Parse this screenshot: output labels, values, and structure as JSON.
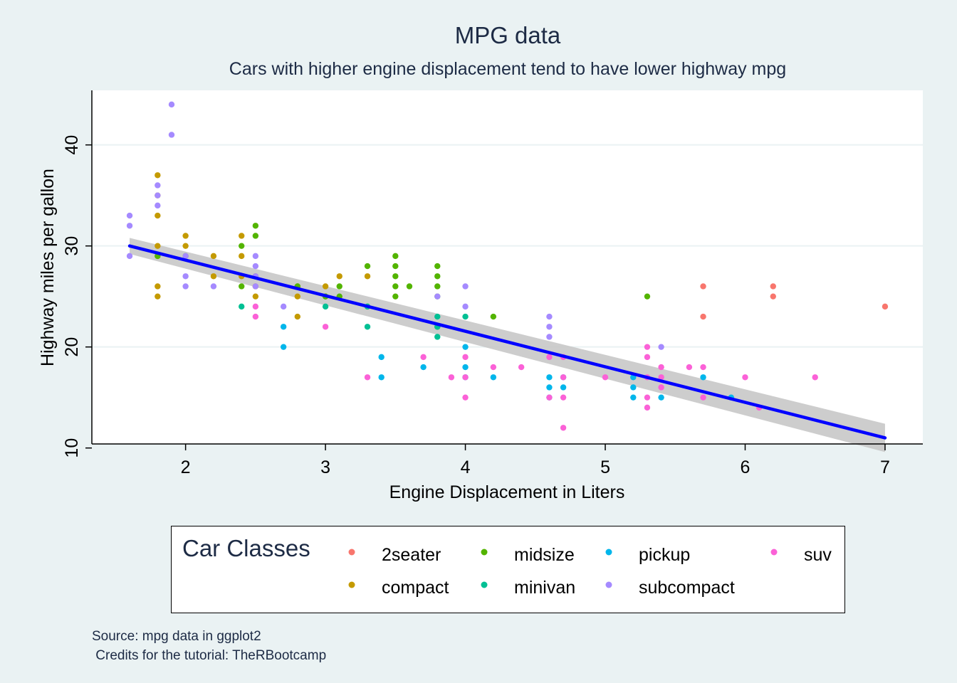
{
  "chart_data": {
    "type": "scatter",
    "title": "MPG data",
    "subtitle": "Cars with higher engine displacement tend to have lower highway mpg",
    "xlabel": "Engine Displacement in Liters",
    "ylabel": "Highway miles per gallon",
    "xlim": [
      1.33,
      7.27
    ],
    "ylim": [
      10.4,
      45.4
    ],
    "xticks": [
      2,
      3,
      4,
      5,
      6,
      7
    ],
    "yticks": [
      10,
      20,
      30,
      40
    ],
    "grid": "horizontal",
    "caption": "Source: mpg data in ggplot2\n Credits for the tutorial: TheRBootcamp",
    "legend": {
      "title": "Car Classes",
      "placement": "bottom",
      "entries": [
        "2seater",
        "midsize",
        "pickup",
        "suv",
        "compact",
        "minivan",
        "subcompact"
      ]
    },
    "colors": {
      "2seater": "#F8766D",
      "compact": "#C49A00",
      "midsize": "#53B400",
      "minivan": "#00C094",
      "pickup": "#00B6EB",
      "subcompact": "#A58AFF",
      "suv": "#FB61D7",
      "trend_line": "#0000ff",
      "confidence_band": "#c8c8c8",
      "background": "#eaf2f3",
      "text": "#1d2b45"
    },
    "trend": {
      "method": "linear fit",
      "x": [
        1.6,
        7.0
      ],
      "y": [
        30.0,
        11.0
      ],
      "ci_lower": [
        29.2,
        9.6
      ],
      "ci_upper": [
        30.8,
        12.4
      ]
    },
    "series": [
      {
        "name": "2seater",
        "x": [
          5.7,
          5.7,
          6.2,
          6.2,
          7.0
        ],
        "y": [
          26,
          23,
          26,
          25,
          24
        ]
      },
      {
        "name": "compact",
        "x": [
          1.8,
          1.8,
          1.8,
          1.8,
          1.8,
          1.8,
          1.8,
          2.0,
          2.0,
          2.2,
          2.2,
          2.4,
          2.4,
          2.4,
          2.5,
          2.5,
          2.5,
          2.8,
          2.8,
          2.8,
          3.0,
          3.0,
          3.1,
          3.3,
          3.3
        ],
        "y": [
          37,
          35,
          33,
          30,
          29,
          26,
          25,
          31,
          30,
          29,
          27,
          31,
          29,
          27,
          27,
          26,
          25,
          26,
          25,
          23,
          26,
          25,
          27,
          27,
          24
        ]
      },
      {
        "name": "midsize",
        "x": [
          1.8,
          2.0,
          2.4,
          2.4,
          2.5,
          2.5,
          2.8,
          3.0,
          3.1,
          3.1,
          3.3,
          3.5,
          3.5,
          3.5,
          3.5,
          3.5,
          3.6,
          3.8,
          3.8,
          3.8,
          3.8,
          3.8,
          4.2,
          5.3
        ],
        "y": [
          29,
          29,
          30,
          26,
          32,
          31,
          26,
          25,
          26,
          25,
          28,
          29,
          28,
          27,
          26,
          25,
          26,
          28,
          27,
          26,
          25,
          22,
          23,
          25
        ]
      },
      {
        "name": "minivan",
        "x": [
          2.4,
          3.0,
          3.3,
          3.3,
          3.8,
          3.8,
          3.8,
          4.0
        ],
        "y": [
          24,
          24,
          24,
          22,
          23,
          22,
          21,
          23
        ]
      },
      {
        "name": "pickup",
        "x": [
          2.7,
          2.7,
          3.4,
          3.4,
          3.7,
          4.0,
          4.0,
          4.0,
          4.2,
          4.6,
          4.6,
          4.6,
          4.7,
          4.7,
          5.2,
          5.2,
          5.2,
          5.4,
          5.7,
          5.9
        ],
        "y": [
          22,
          20,
          19,
          17,
          18,
          20,
          18,
          17,
          17,
          17,
          16,
          15,
          17,
          16,
          17,
          16,
          15,
          15,
          17,
          15
        ]
      },
      {
        "name": "subcompact",
        "x": [
          1.6,
          1.6,
          1.6,
          1.8,
          1.8,
          1.8,
          1.9,
          1.9,
          2.0,
          2.0,
          2.0,
          2.2,
          2.5,
          2.5,
          2.5,
          2.5,
          2.7,
          3.8,
          4.0,
          4.0,
          4.6,
          4.6,
          4.6,
          5.4
        ],
        "y": [
          33,
          32,
          29,
          36,
          35,
          34,
          44,
          41,
          29,
          27,
          26,
          26,
          29,
          28,
          27,
          26,
          24,
          25,
          26,
          24,
          23,
          22,
          21,
          20
        ]
      },
      {
        "name": "suv",
        "x": [
          2.5,
          2.5,
          3.0,
          3.3,
          3.7,
          3.9,
          4.0,
          4.0,
          4.0,
          4.2,
          4.4,
          4.6,
          4.6,
          4.7,
          4.7,
          4.7,
          4.7,
          5.0,
          5.3,
          5.3,
          5.3,
          5.3,
          5.3,
          5.4,
          5.4,
          5.4,
          5.6,
          5.7,
          5.7,
          6.0,
          6.1,
          6.5
        ],
        "y": [
          24,
          23,
          22,
          17,
          19,
          17,
          19,
          17,
          15,
          18,
          18,
          19,
          15,
          19,
          17,
          15,
          12,
          17,
          20,
          19,
          17,
          15,
          14,
          18,
          17,
          16,
          18,
          18,
          15,
          17,
          14,
          17
        ]
      }
    ]
  }
}
